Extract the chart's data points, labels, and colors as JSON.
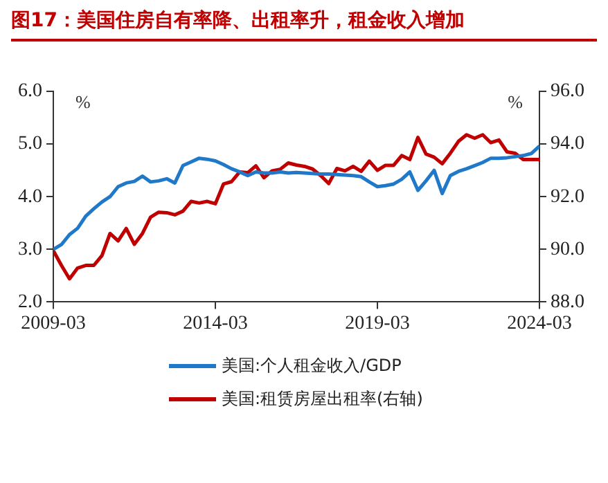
{
  "chart_data": {
    "type": "line",
    "title": "图17：美国住房自有率降、出租率升，租金收入增加",
    "ylabel": "%",
    "y2label": "%",
    "x": [
      "2009-03",
      "2009-06",
      "2009-09",
      "2009-12",
      "2010-03",
      "2010-06",
      "2010-09",
      "2010-12",
      "2011-03",
      "2011-06",
      "2011-09",
      "2011-12",
      "2012-03",
      "2012-06",
      "2012-09",
      "2012-12",
      "2013-03",
      "2013-06",
      "2013-09",
      "2013-12",
      "2014-03",
      "2014-06",
      "2014-09",
      "2014-12",
      "2015-03",
      "2015-06",
      "2015-09",
      "2015-12",
      "2016-03",
      "2016-06",
      "2016-09",
      "2016-12",
      "2017-03",
      "2017-06",
      "2017-09",
      "2017-12",
      "2018-03",
      "2018-06",
      "2018-09",
      "2018-12",
      "2019-03",
      "2019-06",
      "2019-09",
      "2019-12",
      "2020-03",
      "2020-06",
      "2020-09",
      "2020-12",
      "2021-03",
      "2021-06",
      "2021-09",
      "2021-12",
      "2022-03",
      "2022-06",
      "2022-09",
      "2022-12",
      "2023-03",
      "2023-06",
      "2023-09",
      "2023-12",
      "2024-03"
    ],
    "series": [
      {
        "name": "美国:个人租金收入/GDP",
        "color": "#1f78c8",
        "values": [
          3.0,
          3.09,
          3.28,
          3.4,
          3.63,
          3.77,
          3.9,
          4.0,
          4.19,
          4.26,
          4.29,
          4.39,
          4.28,
          4.3,
          4.34,
          4.26,
          4.59,
          4.66,
          4.73,
          4.71,
          4.68,
          4.61,
          4.53,
          4.47,
          4.4,
          4.47,
          4.45,
          4.45,
          4.47,
          4.45,
          4.46,
          4.45,
          4.44,
          4.43,
          4.43,
          4.42,
          4.41,
          4.4,
          4.38,
          4.28,
          4.19,
          4.21,
          4.24,
          4.33,
          4.47,
          4.12,
          4.3,
          4.5,
          4.06,
          4.4,
          4.48,
          4.53,
          4.59,
          4.65,
          4.73,
          4.73,
          4.74,
          4.76,
          4.78,
          4.82,
          4.96
        ]
      },
      {
        "name": "美国:租赁房屋出租率(右轴)",
        "color": "#c00000",
        "axis": "y2",
        "values": [
          89.95,
          89.39,
          88.88,
          89.29,
          89.39,
          89.39,
          89.76,
          90.6,
          90.32,
          90.79,
          90.19,
          90.6,
          91.22,
          91.41,
          91.39,
          91.31,
          91.45,
          91.82,
          91.76,
          91.82,
          91.73,
          92.48,
          92.57,
          92.94,
          92.91,
          93.17,
          92.72,
          92.98,
          93.04,
          93.28,
          93.2,
          93.15,
          93.05,
          92.8,
          92.5,
          93.07,
          92.98,
          93.15,
          92.96,
          93.35,
          93.0,
          93.19,
          93.19,
          93.56,
          93.41,
          94.25,
          93.62,
          93.5,
          93.25,
          93.65,
          94.1,
          94.35,
          94.22,
          94.35,
          94.05,
          94.15,
          93.7,
          93.65,
          93.41,
          93.41,
          93.41
        ]
      }
    ],
    "xlim": [
      "2009-03",
      "2024-03"
    ],
    "xticks": [
      "2009-03",
      "2014-03",
      "2019-03",
      "2024-03"
    ],
    "ylim": [
      2,
      6
    ],
    "yticks": [
      {
        "value": 2,
        "label": "2.0"
      },
      {
        "value": 3,
        "label": "3.0"
      },
      {
        "value": 4,
        "label": "4.0"
      },
      {
        "value": 5,
        "label": "5.0"
      },
      {
        "value": 6,
        "label": "6.0"
      }
    ],
    "y2lim": [
      88,
      96
    ],
    "y2ticks": [
      {
        "value": 88,
        "label": "88.0"
      },
      {
        "value": 90,
        "label": "90.0"
      },
      {
        "value": 92,
        "label": "92.0"
      },
      {
        "value": 94,
        "label": "94.0"
      },
      {
        "value": 96,
        "label": "96.0"
      }
    ],
    "grid": false,
    "legend": "bottom",
    "marker": "none",
    "line_style": "solid"
  }
}
